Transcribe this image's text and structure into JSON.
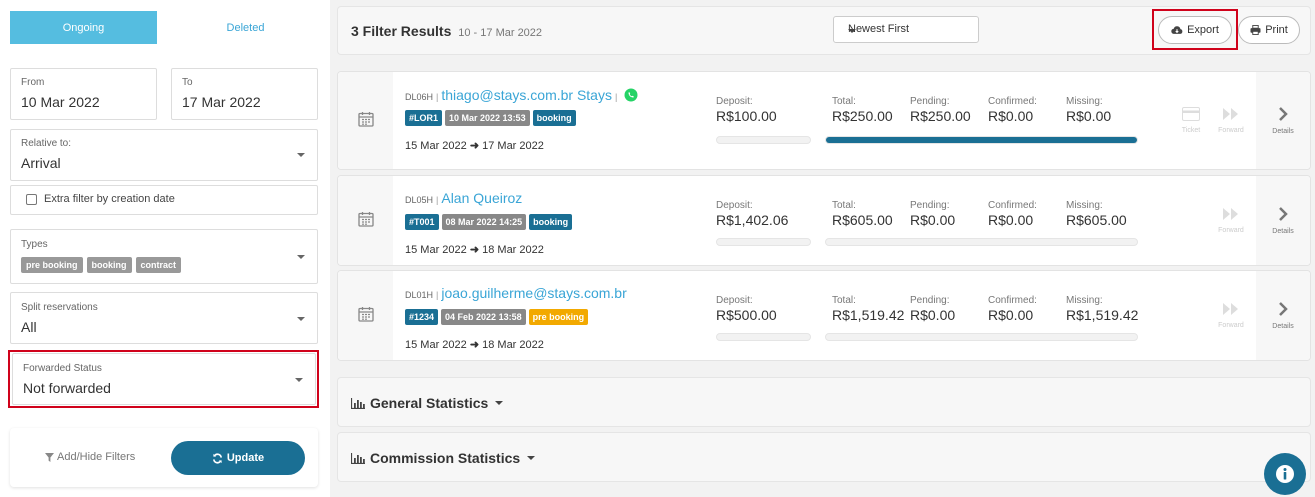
{
  "tabs": {
    "ongoing": "Ongoing",
    "deleted": "Deleted"
  },
  "filters": {
    "from_label": "From",
    "from_value": "10 Mar 2022",
    "to_label": "To",
    "to_value": "17 Mar 2022",
    "relative_label": "Relative to:",
    "relative_value": "Arrival",
    "extra_filter": "Extra filter by creation date",
    "types_label": "Types",
    "types": [
      "pre booking",
      "booking",
      "contract"
    ],
    "split_label": "Split reservations",
    "split_value": "All",
    "forwarded_label": "Forwarded Status",
    "forwarded_value": "Not forwarded",
    "add_hide": "Add/Hide Filters",
    "update": "Update"
  },
  "header": {
    "title": "3 Filter Results",
    "range": "10 - 17 Mar 2022",
    "sort": "Newest First",
    "export": "Export",
    "print": "Print"
  },
  "labels": {
    "deposit": "Deposit:",
    "total": "Total:",
    "pending": "Pending:",
    "confirmed": "Confirmed:",
    "missing": "Missing:",
    "ticket": "Ticket",
    "forward": "Forward",
    "details": "Details"
  },
  "reservations": [
    {
      "code": "DL06H",
      "name": "thiago@stays.com.br Stays",
      "id": "#LOR1",
      "created": "10 Mar 2022 13:53",
      "type": "booking",
      "checkin": "15 Mar 2022",
      "checkout": "17 Mar 2022",
      "deposit": "R$100.00",
      "total": "R$250.00",
      "pending": "R$250.00",
      "confirmed": "R$0.00",
      "missing": "R$0.00",
      "total_fill": 1.0
    },
    {
      "code": "DL05H",
      "name": "Alan Queiroz",
      "id": "#T001",
      "created": "08 Mar 2022 14:25",
      "type": "booking",
      "checkin": "15 Mar 2022",
      "checkout": "18 Mar 2022",
      "deposit": "R$1,402.06",
      "total": "R$605.00",
      "pending": "R$0.00",
      "confirmed": "R$0.00",
      "missing": "R$605.00",
      "total_fill": 0
    },
    {
      "code": "DL01H",
      "name": "joao.guilherme@stays.com.br",
      "id": "#1234",
      "created": "04 Feb 2022 13:58",
      "type": "pre booking",
      "checkin": "15 Mar 2022",
      "checkout": "18 Mar 2022",
      "deposit": "R$500.00",
      "total": "R$1,519.42",
      "pending": "R$0.00",
      "confirmed": "R$0.00",
      "missing": "R$1,519.42",
      "total_fill": 0
    }
  ],
  "stats": {
    "general": "General Statistics",
    "commission": "Commission Statistics"
  },
  "colors": {
    "accent": "#1a6f94",
    "tab_active": "#55bde0",
    "highlight": "#d0021b",
    "pre_booking": "#f2a900"
  }
}
